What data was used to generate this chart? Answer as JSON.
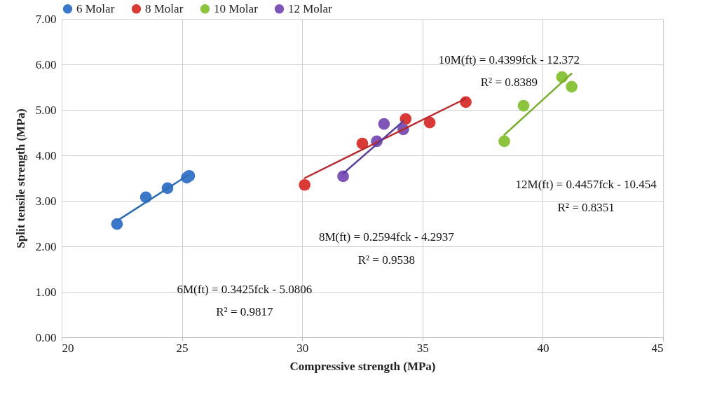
{
  "chart_data": {
    "type": "scatter",
    "xlabel": "Compressive  strength (MPa)",
    "ylabel": "Split tensile  strength (MPa)",
    "xlim": [
      20,
      45
    ],
    "xticks": [
      20,
      25,
      30,
      35,
      40,
      45
    ],
    "ylim": [
      0,
      7
    ],
    "yticks": [
      {
        "value": 0,
        "label": "0.00"
      },
      {
        "value": 1,
        "label": "1.00"
      },
      {
        "value": 2,
        "label": "2.00"
      },
      {
        "value": 3,
        "label": "3.00"
      },
      {
        "value": 4,
        "label": "4.00"
      },
      {
        "value": 5,
        "label": "5.00"
      },
      {
        "value": 6,
        "label": "6.00"
      },
      {
        "value": 7,
        "label": "7.00"
      }
    ],
    "grid": true,
    "legend": "top",
    "marker": "circle",
    "series": [
      {
        "name": "6 Molar",
        "color": "#3b78c9",
        "x": [
          22.3,
          23.5,
          24.4,
          25.2,
          25.3
        ],
        "values": [
          2.49,
          3.08,
          3.28,
          3.51,
          3.55
        ]
      },
      {
        "name": "8 Molar",
        "color": "#d93a36",
        "x": [
          30.1,
          32.5,
          34.3,
          35.3,
          36.8
        ],
        "values": [
          3.35,
          4.26,
          4.8,
          4.72,
          5.17
        ]
      },
      {
        "name": "10 Molar",
        "color": "#8cc43e",
        "x": [
          38.4,
          39.2,
          40.8,
          41.2
        ],
        "values": [
          4.31,
          5.09,
          5.72,
          5.51
        ]
      },
      {
        "name": "12 Molar",
        "color": "#7f56b8",
        "x": [
          31.7,
          33.1,
          33.4,
          34.2
        ],
        "values": [
          3.54,
          4.31,
          4.69,
          4.57
        ]
      },
      {
        "type": "line",
        "marker": "none",
        "color": "#2e6db4",
        "x": [
          22.3,
          25.3
        ],
        "values": [
          2.56,
          3.58
        ]
      },
      {
        "type": "line",
        "marker": "none",
        "color": "#b8282a",
        "x": [
          30.1,
          36.8
        ],
        "values": [
          3.5,
          5.25
        ]
      },
      {
        "type": "line",
        "marker": "none",
        "color": "#7aae2e",
        "x": [
          38.4,
          41.2
        ],
        "values": [
          4.45,
          5.8
        ]
      },
      {
        "type": "line",
        "marker": "none",
        "color": "#5a3e9e",
        "x": [
          31.7,
          34.2
        ],
        "values": [
          3.6,
          4.75
        ]
      }
    ],
    "annotations": [
      "6M(ft) = 0.3425fck  - 5.0806",
      "R² = 0.9817",
      "8M(ft) = 0.2594fck  - 4.2937",
      "R² = 0.9538",
      "10M(ft) = 0.4399fck  - 12.372",
      "R² = 0.8389",
      "12M(ft) = 0.4457fck  - 10.454",
      "R² = 0.8351"
    ]
  }
}
